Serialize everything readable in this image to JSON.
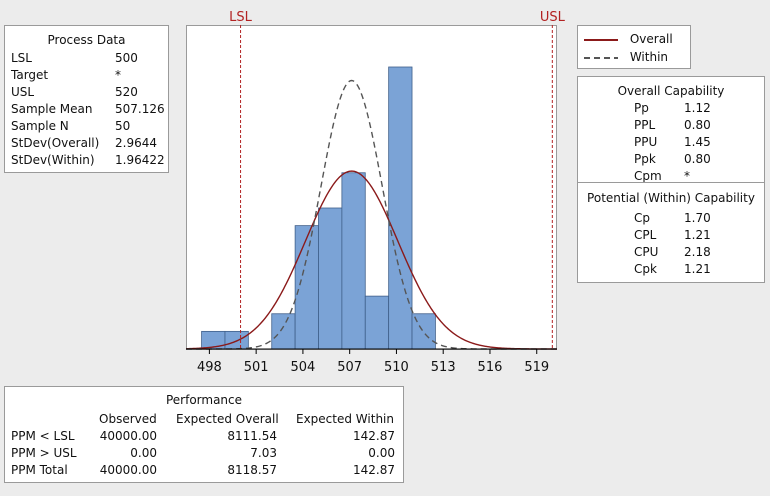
{
  "process_data": {
    "title": "Process Data",
    "rows": [
      {
        "label": "LSL",
        "value": "500"
      },
      {
        "label": "Target",
        "value": "*"
      },
      {
        "label": "USL",
        "value": "520"
      },
      {
        "label": "Sample Mean",
        "value": "507.126"
      },
      {
        "label": "Sample N",
        "value": "50"
      },
      {
        "label": "StDev(Overall)",
        "value": "2.9644"
      },
      {
        "label": "StDev(Within)",
        "value": "1.96422"
      }
    ]
  },
  "legend": {
    "items": [
      {
        "label": "Overall",
        "color": "#8b1a1a",
        "style": "solid"
      },
      {
        "label": "Within",
        "color": "#555555",
        "style": "dashed"
      }
    ]
  },
  "overall_capability": {
    "title": "Overall Capability",
    "rows": [
      {
        "label": "Pp",
        "value": "1.12"
      },
      {
        "label": "PPL",
        "value": "0.80"
      },
      {
        "label": "PPU",
        "value": "1.45"
      },
      {
        "label": "Ppk",
        "value": "0.80"
      },
      {
        "label": "Cpm",
        "value": "*"
      }
    ]
  },
  "potential_capability": {
    "title": "Potential (Within) Capability",
    "rows": [
      {
        "label": "Cp",
        "value": "1.70"
      },
      {
        "label": "CPL",
        "value": "1.21"
      },
      {
        "label": "CPU",
        "value": "2.18"
      },
      {
        "label": "Cpk",
        "value": "1.21"
      }
    ]
  },
  "performance": {
    "title": "Performance",
    "headers": [
      "",
      "Observed",
      "Expected Overall",
      "Expected Within"
    ],
    "rows": [
      {
        "label": "PPM < LSL",
        "observed": "40000.00",
        "expected_overall": "8111.54",
        "expected_within": "142.87"
      },
      {
        "label": "PPM > USL",
        "observed": "0.00",
        "expected_overall": "7.03",
        "expected_within": "0.00"
      },
      {
        "label": "PPM Total",
        "observed": "40000.00",
        "expected_overall": "8118.57",
        "expected_within": "142.87"
      }
    ]
  },
  "chart_data": {
    "type": "bar",
    "subtype": "capability-histogram",
    "bin_width": 1.5,
    "bins": [
      {
        "start": 497.5,
        "end": 499.0,
        "count": 1
      },
      {
        "start": 499.0,
        "end": 500.5,
        "count": 1
      },
      {
        "start": 500.5,
        "end": 502.0,
        "count": 0
      },
      {
        "start": 502.0,
        "end": 503.5,
        "count": 2
      },
      {
        "start": 503.5,
        "end": 505.0,
        "count": 7
      },
      {
        "start": 505.0,
        "end": 506.5,
        "count": 8
      },
      {
        "start": 506.5,
        "end": 508.0,
        "count": 10
      },
      {
        "start": 508.0,
        "end": 509.5,
        "count": 3
      },
      {
        "start": 509.5,
        "end": 511.0,
        "count": 16
      },
      {
        "start": 511.0,
        "end": 512.5,
        "count": 2
      }
    ],
    "xlim": [
      496.5,
      520.3
    ],
    "ylim": [
      0,
      17
    ],
    "x_ticks": [
      498,
      501,
      504,
      507,
      510,
      513,
      516,
      519
    ],
    "spec_limits": [
      {
        "label": "LSL",
        "value": 500,
        "color": "#b22222"
      },
      {
        "label": "USL",
        "value": 520,
        "color": "#b22222"
      }
    ],
    "curves": [
      {
        "name": "Overall",
        "mean": 507.126,
        "sd": 2.9644,
        "color": "#8b1a1a",
        "dash": "none"
      },
      {
        "name": "Within",
        "mean": 507.126,
        "sd": 1.96422,
        "color": "#555555",
        "dash": "6,4"
      }
    ],
    "bar_color": "#7ba3d6",
    "bar_edge": "#3f5f8a",
    "n": 50
  }
}
